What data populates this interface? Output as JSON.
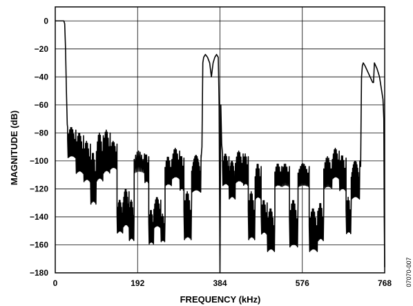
{
  "figure_id": "07070-007",
  "chart_data": {
    "type": "line",
    "title": "",
    "xlabel": "FREQUENCY (kHz)",
    "ylabel": "MAGNITUDE (dB)",
    "xlim": [
      0,
      768
    ],
    "ylim": [
      -180,
      10
    ],
    "x_ticks": [
      0,
      192,
      384,
      576,
      768
    ],
    "y_ticks": [
      0,
      -20,
      -40,
      -60,
      -80,
      -100,
      -120,
      -140,
      -160,
      -180
    ],
    "grid": true,
    "legend": "none",
    "colors": {
      "line": "#000000",
      "grid": "#000000"
    },
    "series": [
      {
        "lobes": [
          {
            "x": 28.8,
            "x_end": 48,
            "peak": -76,
            "floor": -100,
            "teeth": 8
          },
          {
            "x": 48,
            "x_end": 66,
            "peak": -80,
            "floor": -112,
            "teeth": 8
          },
          {
            "x": 66,
            "x_end": 82,
            "peak": -86,
            "floor": -118,
            "teeth": 7
          },
          {
            "x": 82,
            "x_end": 96,
            "peak": -94,
            "floor": -135,
            "teeth": 6
          },
          {
            "x": 96,
            "x_end": 112,
            "peak": -80,
            "floor": -118,
            "teeth": 7
          },
          {
            "x": 112,
            "x_end": 128,
            "peak": -78,
            "floor": -112,
            "teeth": 7
          },
          {
            "x": 128,
            "x_end": 144,
            "peak": -86,
            "floor": -108,
            "teeth": 7
          },
          {
            "x": 144,
            "x_end": 158,
            "peak": -128,
            "floor": -154,
            "teeth": 8
          },
          {
            "x": 158,
            "x_end": 172,
            "peak": -120,
            "floor": -150,
            "teeth": 8
          },
          {
            "x": 172,
            "x_end": 184,
            "peak": -128,
            "floor": -160,
            "teeth": 7
          },
          {
            "x": 184,
            "x_end": 208,
            "peak": -93,
            "floor": -110,
            "teeth": 7
          },
          {
            "x": 208,
            "x_end": 218,
            "peak": -95,
            "floor": -118,
            "teeth": 4
          },
          {
            "x": 218,
            "x_end": 230,
            "peak": -135,
            "floor": -162,
            "teeth": 6
          },
          {
            "x": 230,
            "x_end": 246,
            "peak": -126,
            "floor": -150,
            "teeth": 8
          },
          {
            "x": 246,
            "x_end": 256,
            "peak": -138,
            "floor": -160,
            "teeth": 5
          },
          {
            "x": 256,
            "x_end": 272,
            "peak": -97,
            "floor": -120,
            "teeth": 6
          },
          {
            "x": 272,
            "x_end": 290,
            "peak": -91,
            "floor": -115,
            "teeth": 7
          },
          {
            "x": 290,
            "x_end": 300,
            "peak": -96,
            "floor": -124,
            "teeth": 4
          },
          {
            "x": 300,
            "x_end": 318,
            "peak": -122,
            "floor": -160,
            "teeth": 7
          },
          {
            "x": 318,
            "x_end": 340,
            "peak": -96,
            "floor": -125,
            "teeth": 12
          },
          {
            "x": 390,
            "x_end": 405,
            "peak": -95,
            "floor": -120,
            "teeth": 8
          },
          {
            "x": 405,
            "x_end": 420,
            "peak": -100,
            "floor": -130,
            "teeth": 10
          },
          {
            "x": 420,
            "x_end": 438,
            "peak": -93,
            "floor": -118,
            "teeth": 7
          },
          {
            "x": 438,
            "x_end": 450,
            "peak": -95,
            "floor": -120,
            "teeth": 5
          },
          {
            "x": 450,
            "x_end": 466,
            "peak": -122,
            "floor": -160,
            "teeth": 7
          },
          {
            "x": 466,
            "x_end": 480,
            "peak": -102,
            "floor": -130,
            "teeth": 6
          },
          {
            "x": 480,
            "x_end": 494,
            "peak": -128,
            "floor": -155,
            "teeth": 6
          },
          {
            "x": 494,
            "x_end": 512,
            "peak": -134,
            "floor": -168,
            "teeth": 8
          },
          {
            "x": 512,
            "x_end": 528,
            "peak": -102,
            "floor": -120,
            "teeth": 6
          },
          {
            "x": 528,
            "x_end": 546,
            "peak": -102,
            "floor": -120,
            "teeth": 6
          },
          {
            "x": 546,
            "x_end": 566,
            "peak": -128,
            "floor": -165,
            "teeth": 8
          },
          {
            "x": 566,
            "x_end": 592,
            "peak": -102,
            "floor": -120,
            "teeth": 9
          },
          {
            "x": 592,
            "x_end": 612,
            "peak": -134,
            "floor": -168,
            "teeth": 8
          },
          {
            "x": 612,
            "x_end": 626,
            "peak": -130,
            "floor": -160,
            "teeth": 6
          },
          {
            "x": 626,
            "x_end": 646,
            "peak": -97,
            "floor": -122,
            "teeth": 7
          },
          {
            "x": 646,
            "x_end": 662,
            "peak": -91,
            "floor": -115,
            "teeth": 7
          },
          {
            "x": 662,
            "x_end": 678,
            "peak": -96,
            "floor": -124,
            "teeth": 6
          },
          {
            "x": 678,
            "x_end": 690,
            "peak": -126,
            "floor": -155,
            "teeth": 5
          },
          {
            "x": 690,
            "x_end": 710,
            "peak": -100,
            "floor": -130,
            "teeth": 12
          }
        ],
        "points": [
          [
            0,
            0
          ],
          [
            20,
            0
          ],
          [
            22,
            -2
          ],
          [
            24,
            -20
          ],
          [
            26,
            -50
          ],
          [
            28,
            -74
          ],
          [
            28.8,
            -76
          ],
          [
            340,
            -96
          ],
          [
            342,
            -90
          ],
          [
            343,
            -60
          ],
          [
            344,
            -30
          ],
          [
            346,
            -26
          ],
          [
            350,
            -24
          ],
          [
            355,
            -26
          ],
          [
            360,
            -30
          ],
          [
            364,
            -40
          ],
          [
            366,
            -35
          ],
          [
            368,
            -30
          ],
          [
            372,
            -26
          ],
          [
            376,
            -24
          ],
          [
            380,
            -26
          ],
          [
            382,
            -60
          ],
          [
            383,
            -120
          ],
          [
            384,
            -180
          ],
          [
            385,
            -120
          ],
          [
            386,
            -60
          ],
          [
            388,
            -88
          ],
          [
            390,
            -95
          ],
          [
            710,
            -100
          ],
          [
            712,
            -104
          ],
          [
            713,
            -70
          ],
          [
            714,
            -40
          ],
          [
            716,
            -32
          ],
          [
            718,
            -30
          ],
          [
            722,
            -32
          ],
          [
            728,
            -36
          ],
          [
            734,
            -40
          ],
          [
            740,
            -44
          ],
          [
            742,
            -44
          ],
          [
            744,
            -30
          ],
          [
            750,
            -34
          ],
          [
            756,
            -40
          ],
          [
            760,
            -48
          ],
          [
            764,
            -56
          ],
          [
            766,
            -70
          ],
          [
            767,
            -140
          ],
          [
            768,
            -176
          ]
        ]
      }
    ]
  }
}
